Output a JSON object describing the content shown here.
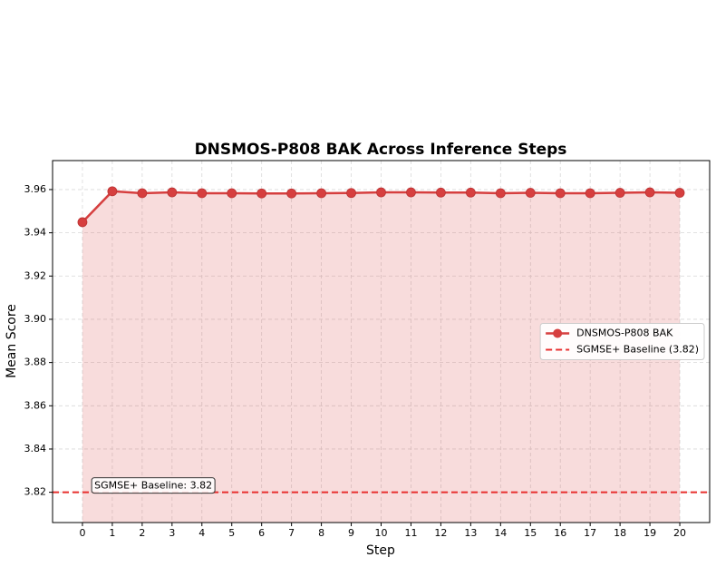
{
  "chart_data": {
    "type": "line",
    "title": "DNSMOS-P808 BAK Across Inference Steps",
    "x_label": "Step",
    "y_label": "Mean Score",
    "x": [
      0,
      1,
      2,
      3,
      4,
      5,
      6,
      7,
      8,
      9,
      10,
      11,
      12,
      13,
      14,
      15,
      16,
      17,
      18,
      19,
      20
    ],
    "series": [
      {
        "name": "DNSMOS-P808 BAK",
        "color": "#d63f3f",
        "values": [
          3.9449,
          3.9592,
          3.9583,
          3.9587,
          3.9583,
          3.9583,
          3.9582,
          3.9582,
          3.9583,
          3.9584,
          3.9587,
          3.9587,
          3.9586,
          3.9586,
          3.9583,
          3.9585,
          3.9583,
          3.9583,
          3.9585,
          3.9587,
          3.9585
        ]
      }
    ],
    "baseline": {
      "name": "SGMSE+ Baseline (3.82)",
      "value": 3.82,
      "color": "#e8302f",
      "annotation": "SGMSE+ Baseline: 3.82"
    },
    "xlim": [
      -1,
      21
    ],
    "ylim": [
      3.806,
      3.9734
    ],
    "xticks": [
      0,
      1,
      2,
      3,
      4,
      5,
      6,
      7,
      8,
      9,
      10,
      11,
      12,
      13,
      14,
      15,
      16,
      17,
      18,
      19,
      20
    ],
    "yticks": [
      3.82,
      3.84,
      3.86,
      3.88,
      {
        "value": 3.9,
        "label": "3.90"
      },
      3.92,
      3.94,
      3.96
    ],
    "grid": true,
    "legend": "center right"
  }
}
